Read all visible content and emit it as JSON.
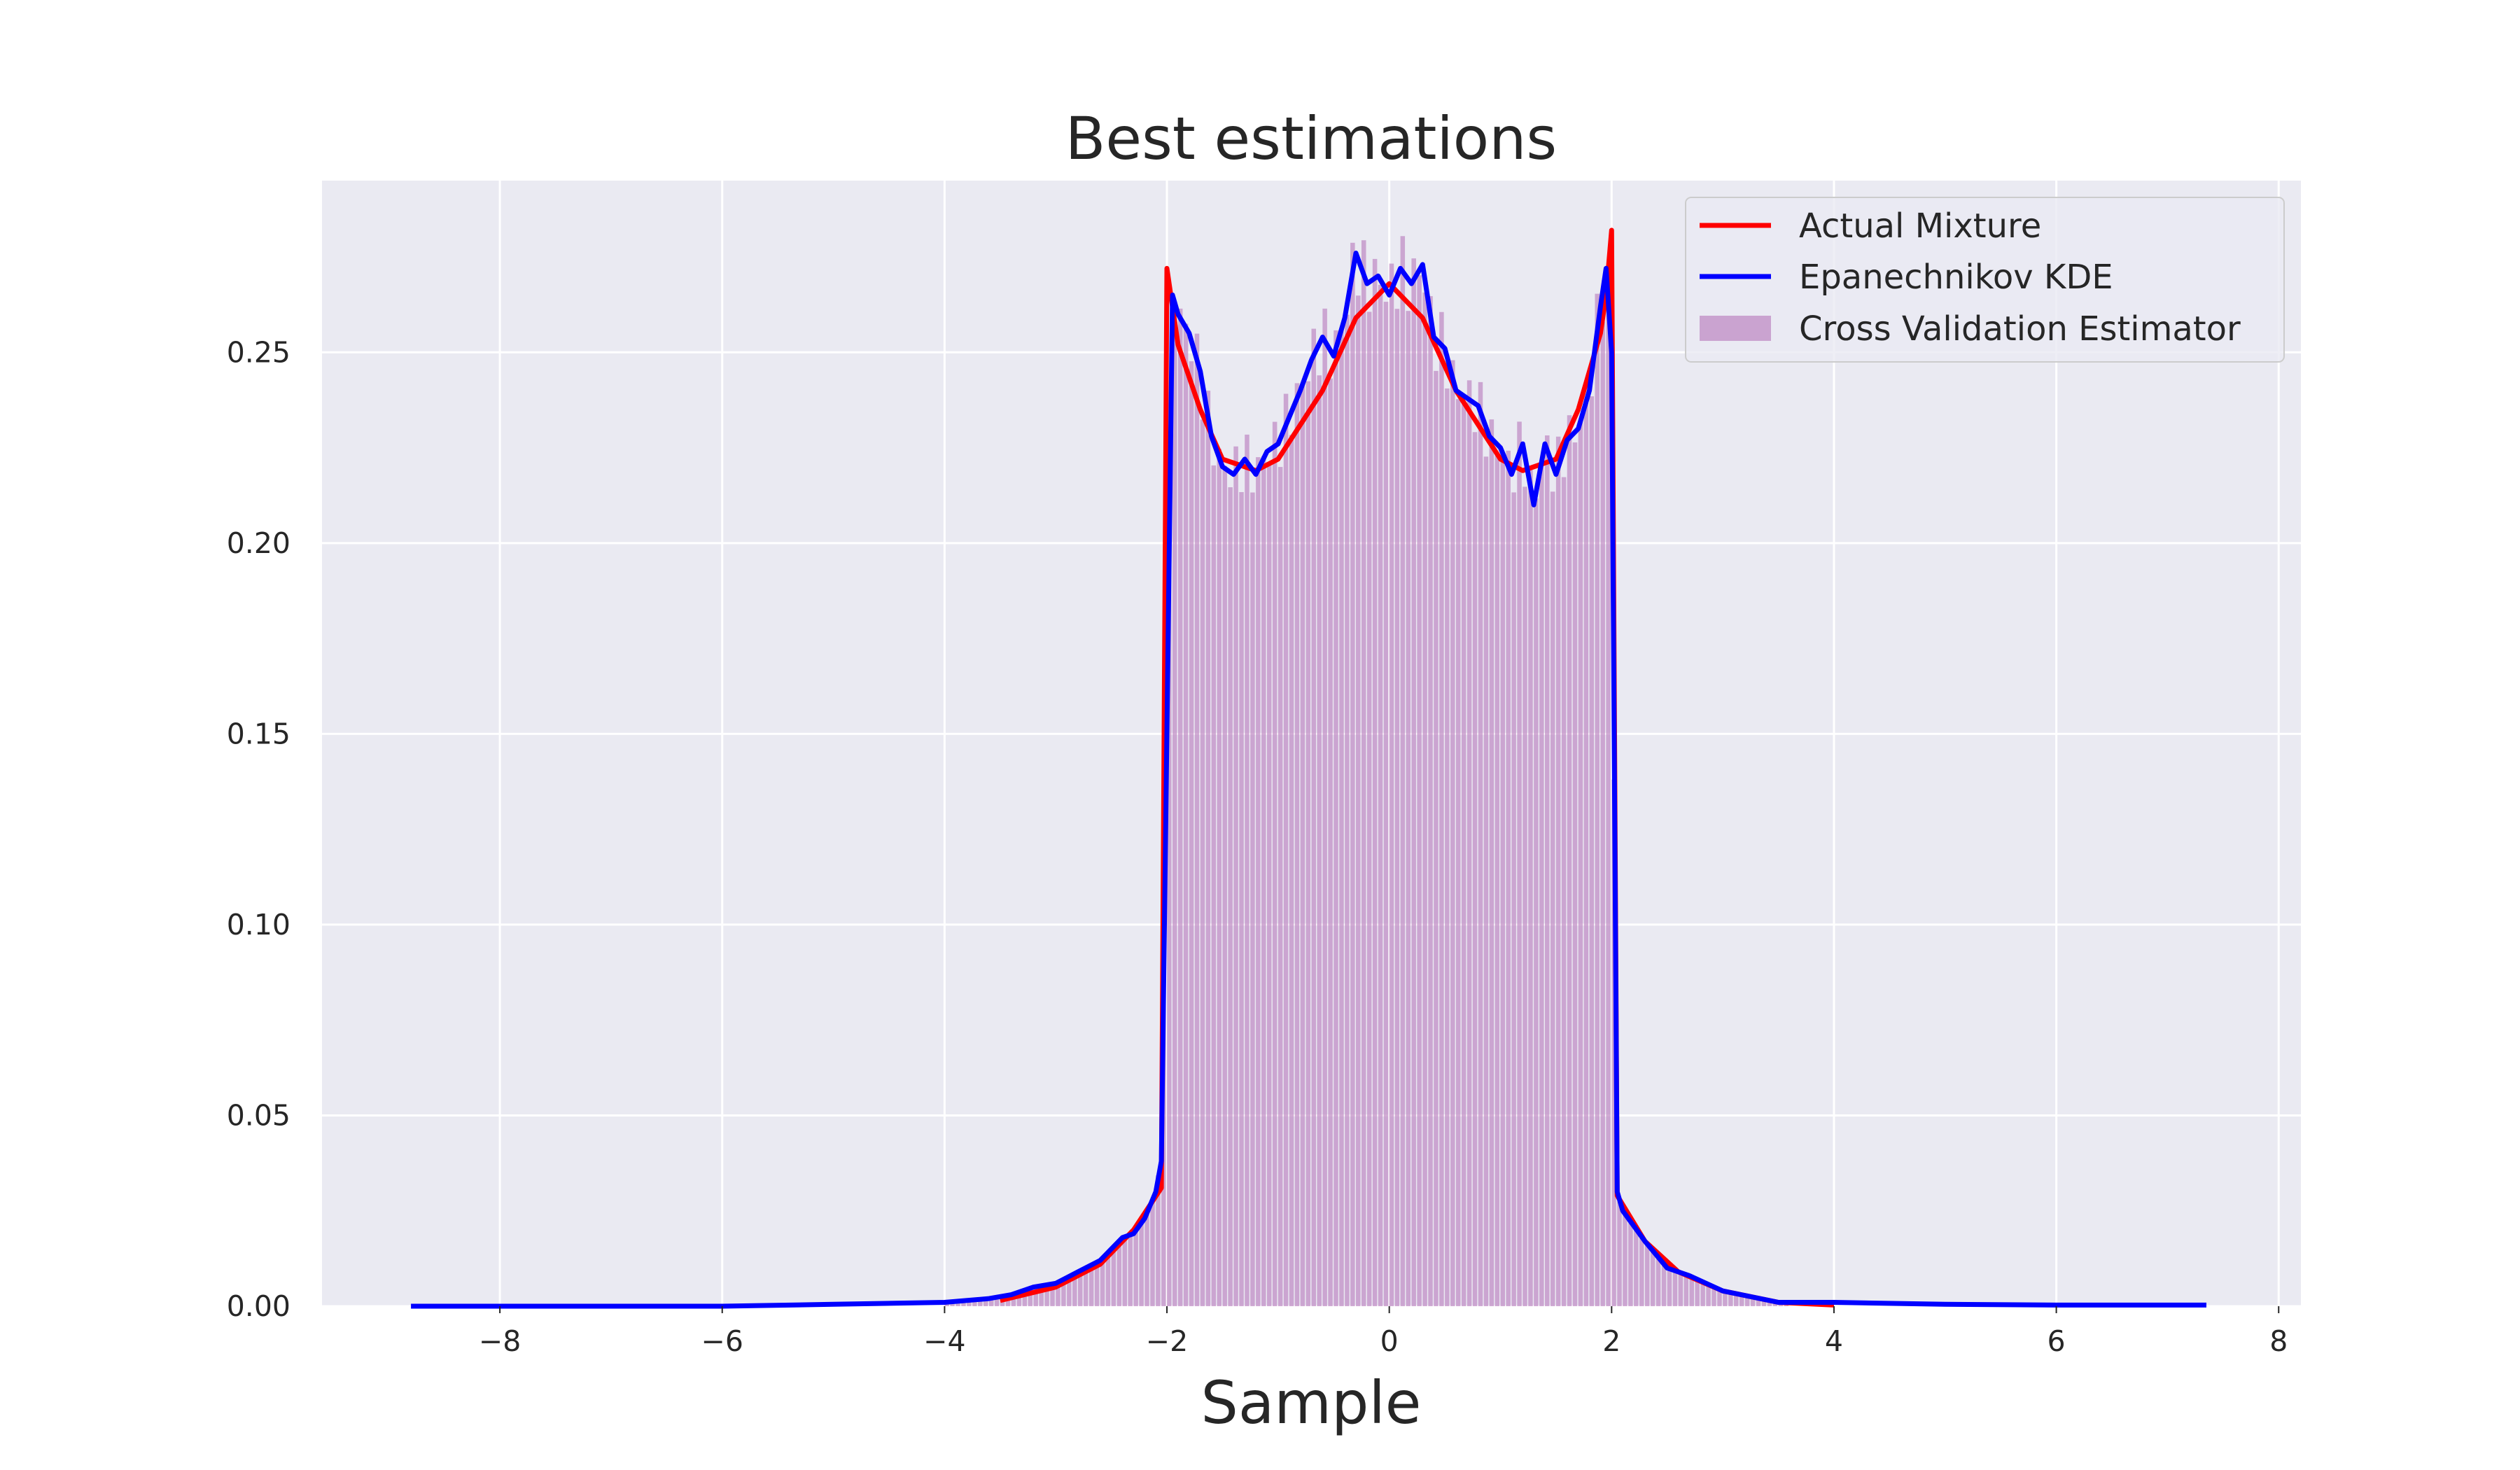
{
  "chart_data": {
    "type": "line",
    "title": "Best estimations",
    "xlabel": "Sample",
    "ylabel": "",
    "xlim": [
      -9.6,
      8.2
    ],
    "ylim": [
      0,
      0.295
    ],
    "xticks": [
      -8,
      -6,
      -4,
      -2,
      0,
      2,
      4,
      6,
      8
    ],
    "xtick_labels": [
      "−8",
      "−6",
      "−4",
      "−2",
      "0",
      "2",
      "4",
      "6",
      "8"
    ],
    "yticks": [
      0.0,
      0.05,
      0.1,
      0.15,
      0.2,
      0.25
    ],
    "ytick_labels": [
      "0.00",
      "0.05",
      "0.10",
      "0.15",
      "0.20",
      "0.25"
    ],
    "grid": true,
    "legend_position": "top-right",
    "colors": {
      "background": "#eaeaf2",
      "grid": "#ffffff",
      "actual": "#ff0000",
      "kde": "#0000ff",
      "hist": "#bf8bc4"
    },
    "series": [
      {
        "name": "Actual Mixture",
        "kind": "line",
        "x": [
          -3.5,
          -3.0,
          -2.6,
          -2.3,
          -2.05,
          -2.0,
          -1.9,
          -1.7,
          -1.5,
          -1.2,
          -1.0,
          -0.6,
          -0.3,
          0.0,
          0.3,
          0.6,
          1.0,
          1.2,
          1.5,
          1.7,
          1.9,
          1.95,
          2.0,
          2.05,
          2.3,
          2.6,
          3.0,
          3.5,
          4.0
        ],
        "y": [
          0.0015,
          0.005,
          0.011,
          0.02,
          0.031,
          0.272,
          0.252,
          0.235,
          0.222,
          0.219,
          0.222,
          0.24,
          0.259,
          0.268,
          0.259,
          0.24,
          0.222,
          0.219,
          0.222,
          0.235,
          0.255,
          0.265,
          0.282,
          0.029,
          0.017,
          0.009,
          0.004,
          0.001,
          0.0003
        ]
      },
      {
        "name": "Epanechnikov KDE",
        "kind": "line",
        "x": [
          -8.8,
          -6.0,
          -5.0,
          -4.0,
          -3.6,
          -3.4,
          -3.2,
          -3.0,
          -2.8,
          -2.6,
          -2.4,
          -2.3,
          -2.2,
          -2.1,
          -2.05,
          -2.0,
          -1.95,
          -1.9,
          -1.8,
          -1.7,
          -1.6,
          -1.5,
          -1.4,
          -1.3,
          -1.2,
          -1.1,
          -1.0,
          -0.9,
          -0.8,
          -0.7,
          -0.6,
          -0.5,
          -0.4,
          -0.3,
          -0.2,
          -0.1,
          0.0,
          0.1,
          0.2,
          0.3,
          0.4,
          0.5,
          0.6,
          0.7,
          0.8,
          0.9,
          1.0,
          1.1,
          1.2,
          1.3,
          1.4,
          1.5,
          1.6,
          1.7,
          1.8,
          1.9,
          1.95,
          2.0,
          2.05,
          2.1,
          2.3,
          2.5,
          2.7,
          3.0,
          3.5,
          4.0,
          5.0,
          6.0,
          7.35
        ],
        "y": [
          0.0,
          0.0,
          0.0005,
          0.001,
          0.002,
          0.003,
          0.005,
          0.006,
          0.009,
          0.012,
          0.018,
          0.019,
          0.023,
          0.03,
          0.038,
          0.15,
          0.265,
          0.26,
          0.255,
          0.245,
          0.228,
          0.22,
          0.218,
          0.222,
          0.218,
          0.224,
          0.226,
          0.233,
          0.24,
          0.248,
          0.254,
          0.249,
          0.259,
          0.276,
          0.268,
          0.27,
          0.265,
          0.272,
          0.268,
          0.273,
          0.254,
          0.251,
          0.24,
          0.238,
          0.236,
          0.228,
          0.225,
          0.218,
          0.226,
          0.21,
          0.226,
          0.218,
          0.227,
          0.23,
          0.24,
          0.262,
          0.272,
          0.25,
          0.03,
          0.025,
          0.017,
          0.01,
          0.008,
          0.004,
          0.001,
          0.001,
          0.0005,
          0.0003,
          0.0003
        ]
      },
      {
        "name": "Cross Validation Estimator",
        "kind": "histogram",
        "bin_width": 0.05,
        "range": [
          -4.0,
          3.6
        ]
      }
    ]
  }
}
